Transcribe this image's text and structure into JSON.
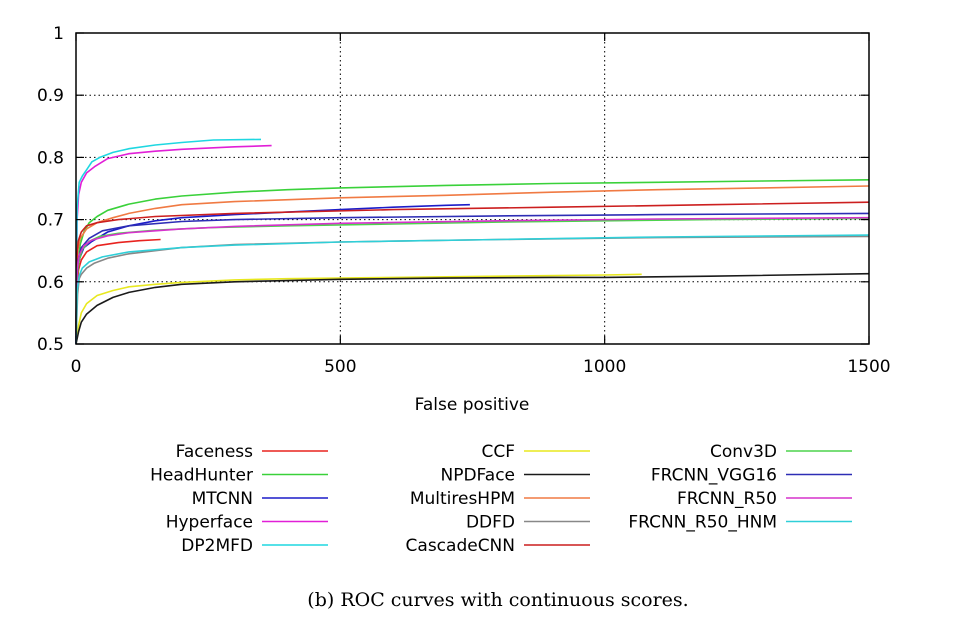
{
  "chart_data": {
    "type": "line",
    "title": "",
    "xlabel": "False positive",
    "ylabel": "",
    "xlim": [
      0,
      1500
    ],
    "ylim": [
      0.5,
      1
    ],
    "xticks": [
      "0",
      "500",
      "1000",
      "1500"
    ],
    "yticks": [
      "0.5",
      "0.6",
      "0.7",
      "0.8",
      "0.9",
      "1"
    ],
    "grid": true,
    "caption": "(b) ROC curves with continuous scores.",
    "series": [
      {
        "name": "Faceness",
        "color": "#e8231f",
        "legend_col": 0,
        "points": [
          [
            0,
            0.5
          ],
          [
            1,
            0.59
          ],
          [
            5,
            0.62
          ],
          [
            10,
            0.635
          ],
          [
            20,
            0.648
          ],
          [
            40,
            0.658
          ],
          [
            80,
            0.663
          ],
          [
            120,
            0.666
          ],
          [
            160,
            0.668
          ]
        ]
      },
      {
        "name": "HeadHunter",
        "color": "#3ad13a",
        "legend_col": 0,
        "points": [
          [
            0,
            0.5
          ],
          [
            1,
            0.6
          ],
          [
            4,
            0.63
          ],
          [
            8,
            0.66
          ],
          [
            15,
            0.68
          ],
          [
            25,
            0.695
          ],
          [
            40,
            0.705
          ],
          [
            60,
            0.715
          ],
          [
            100,
            0.725
          ],
          [
            150,
            0.733
          ],
          [
            200,
            0.738
          ],
          [
            300,
            0.744
          ],
          [
            400,
            0.748
          ],
          [
            500,
            0.751
          ],
          [
            700,
            0.755
          ],
          [
            900,
            0.758
          ],
          [
            1100,
            0.76
          ],
          [
            1300,
            0.762
          ],
          [
            1500,
            0.764
          ]
        ]
      },
      {
        "name": "MTCNN",
        "color": "#1c1cc8",
        "legend_col": 0,
        "points": [
          [
            0,
            0.5
          ],
          [
            1,
            0.6
          ],
          [
            3,
            0.625
          ],
          [
            8,
            0.64
          ],
          [
            15,
            0.655
          ],
          [
            30,
            0.665
          ],
          [
            60,
            0.68
          ],
          [
            100,
            0.69
          ],
          [
            150,
            0.698
          ],
          [
            200,
            0.703
          ],
          [
            300,
            0.708
          ],
          [
            400,
            0.712
          ],
          [
            500,
            0.716
          ],
          [
            600,
            0.72
          ],
          [
            700,
            0.723
          ],
          [
            745,
            0.724
          ]
        ]
      },
      {
        "name": "Hyperface",
        "color": "#e11fd7",
        "legend_col": 0,
        "points": [
          [
            0,
            0.5
          ],
          [
            2,
            0.7
          ],
          [
            5,
            0.74
          ],
          [
            10,
            0.76
          ],
          [
            20,
            0.775
          ],
          [
            35,
            0.785
          ],
          [
            60,
            0.798
          ],
          [
            100,
            0.806
          ],
          [
            150,
            0.81
          ],
          [
            200,
            0.813
          ],
          [
            300,
            0.817
          ],
          [
            370,
            0.819
          ]
        ]
      },
      {
        "name": "DP2MFD",
        "color": "#1fd7e1",
        "legend_col": 0,
        "points": [
          [
            0,
            0.5
          ],
          [
            2,
            0.72
          ],
          [
            6,
            0.76
          ],
          [
            12,
            0.77
          ],
          [
            20,
            0.78
          ],
          [
            30,
            0.793
          ],
          [
            45,
            0.8
          ],
          [
            70,
            0.808
          ],
          [
            100,
            0.814
          ],
          [
            150,
            0.82
          ],
          [
            200,
            0.824
          ],
          [
            260,
            0.828
          ],
          [
            350,
            0.829
          ]
        ]
      },
      {
        "name": "CCF",
        "color": "#e8e81f",
        "legend_col": 1,
        "points": [
          [
            0,
            0.5
          ],
          [
            5,
            0.53
          ],
          [
            10,
            0.55
          ],
          [
            20,
            0.565
          ],
          [
            40,
            0.578
          ],
          [
            70,
            0.586
          ],
          [
            100,
            0.592
          ],
          [
            150,
            0.596
          ],
          [
            200,
            0.599
          ],
          [
            300,
            0.603
          ],
          [
            400,
            0.605
          ],
          [
            600,
            0.607
          ],
          [
            800,
            0.609
          ],
          [
            1000,
            0.611
          ],
          [
            1070,
            0.612
          ]
        ]
      },
      {
        "name": "NPDFace",
        "color": "#1a1a1a",
        "legend_col": 1,
        "points": [
          [
            0,
            0.5
          ],
          [
            5,
            0.52
          ],
          [
            10,
            0.535
          ],
          [
            20,
            0.548
          ],
          [
            40,
            0.562
          ],
          [
            70,
            0.575
          ],
          [
            100,
            0.583
          ],
          [
            150,
            0.591
          ],
          [
            200,
            0.596
          ],
          [
            300,
            0.6
          ],
          [
            400,
            0.602
          ],
          [
            500,
            0.604
          ],
          [
            700,
            0.606
          ],
          [
            900,
            0.607
          ],
          [
            1000,
            0.607
          ],
          [
            1200,
            0.609
          ],
          [
            1500,
            0.613
          ]
        ]
      },
      {
        "name": "MultiresHPM",
        "color": "#f07a43",
        "legend_col": 1,
        "points": [
          [
            0,
            0.5
          ],
          [
            1,
            0.62
          ],
          [
            3,
            0.65
          ],
          [
            8,
            0.67
          ],
          [
            20,
            0.685
          ],
          [
            40,
            0.695
          ],
          [
            70,
            0.703
          ],
          [
            100,
            0.71
          ],
          [
            150,
            0.718
          ],
          [
            200,
            0.724
          ],
          [
            300,
            0.729
          ],
          [
            500,
            0.735
          ],
          [
            700,
            0.739
          ],
          [
            900,
            0.744
          ],
          [
            1100,
            0.748
          ],
          [
            1300,
            0.751
          ],
          [
            1500,
            0.754
          ]
        ]
      },
      {
        "name": "DDFD",
        "color": "#888888",
        "legend_col": 1,
        "points": [
          [
            0,
            0.5
          ],
          [
            3,
            0.58
          ],
          [
            6,
            0.605
          ],
          [
            10,
            0.612
          ],
          [
            20,
            0.622
          ],
          [
            35,
            0.63
          ],
          [
            60,
            0.638
          ],
          [
            100,
            0.645
          ],
          [
            150,
            0.65
          ],
          [
            200,
            0.655
          ],
          [
            300,
            0.66
          ],
          [
            500,
            0.664
          ],
          [
            800,
            0.668
          ],
          [
            1100,
            0.671
          ],
          [
            1500,
            0.673
          ]
        ]
      },
      {
        "name": "CascadeCNN",
        "color": "#cc1f1f",
        "legend_col": 1,
        "points": [
          [
            0,
            0.5
          ],
          [
            1,
            0.63
          ],
          [
            4,
            0.665
          ],
          [
            10,
            0.68
          ],
          [
            20,
            0.69
          ],
          [
            40,
            0.695
          ],
          [
            80,
            0.7
          ],
          [
            150,
            0.705
          ],
          [
            300,
            0.71
          ],
          [
            600,
            0.716
          ],
          [
            900,
            0.72
          ],
          [
            1200,
            0.724
          ],
          [
            1500,
            0.728
          ]
        ]
      },
      {
        "name": "Conv3D",
        "color": "#4dd34d",
        "legend_col": 2,
        "points": [
          [
            0,
            0.5
          ],
          [
            2,
            0.61
          ],
          [
            6,
            0.635
          ],
          [
            12,
            0.652
          ],
          [
            25,
            0.665
          ],
          [
            45,
            0.673
          ],
          [
            80,
            0.678
          ],
          [
            150,
            0.683
          ],
          [
            250,
            0.687
          ],
          [
            400,
            0.69
          ],
          [
            600,
            0.693
          ],
          [
            800,
            0.696
          ],
          [
            1000,
            0.698
          ],
          [
            1200,
            0.7
          ],
          [
            1500,
            0.702
          ]
        ]
      },
      {
        "name": "FRCNN_VGG16",
        "color": "#2d2db5",
        "legend_col": 2,
        "points": [
          [
            0,
            0.5
          ],
          [
            1,
            0.6
          ],
          [
            4,
            0.635
          ],
          [
            10,
            0.655
          ],
          [
            25,
            0.67
          ],
          [
            50,
            0.682
          ],
          [
            100,
            0.69
          ],
          [
            200,
            0.697
          ],
          [
            300,
            0.7
          ],
          [
            500,
            0.703
          ],
          [
            800,
            0.706
          ],
          [
            1100,
            0.708
          ],
          [
            1500,
            0.71
          ]
        ]
      },
      {
        "name": "FRCNN_R50",
        "color": "#d632cc",
        "legend_col": 2,
        "points": [
          [
            0,
            0.5
          ],
          [
            2,
            0.62
          ],
          [
            6,
            0.643
          ],
          [
            15,
            0.658
          ],
          [
            30,
            0.667
          ],
          [
            60,
            0.674
          ],
          [
            100,
            0.679
          ],
          [
            200,
            0.685
          ],
          [
            300,
            0.689
          ],
          [
            500,
            0.694
          ],
          [
            800,
            0.698
          ],
          [
            1100,
            0.701
          ],
          [
            1500,
            0.703
          ]
        ]
      },
      {
        "name": "FRCNN_R50_HNM",
        "color": "#2fcfd8",
        "legend_col": 2,
        "points": [
          [
            0,
            0.5
          ],
          [
            2,
            0.585
          ],
          [
            6,
            0.61
          ],
          [
            12,
            0.622
          ],
          [
            25,
            0.632
          ],
          [
            50,
            0.64
          ],
          [
            100,
            0.648
          ],
          [
            200,
            0.655
          ],
          [
            300,
            0.659
          ],
          [
            500,
            0.664
          ],
          [
            800,
            0.668
          ],
          [
            1100,
            0.672
          ],
          [
            1500,
            0.675
          ]
        ]
      }
    ]
  }
}
